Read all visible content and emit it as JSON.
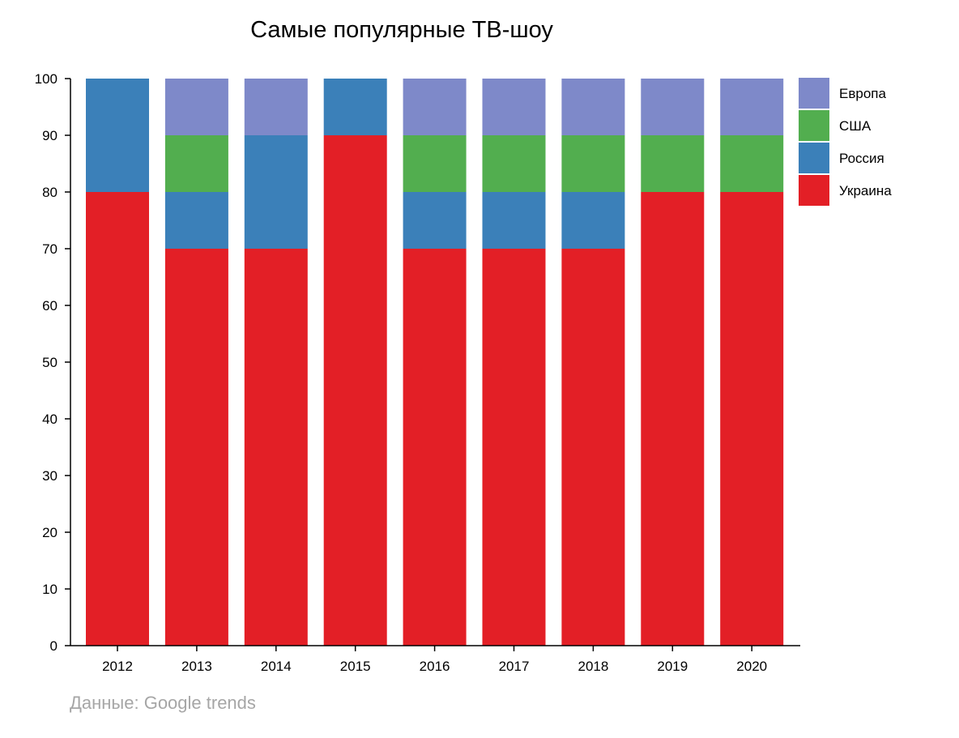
{
  "chart_data": {
    "type": "bar",
    "stacked": true,
    "title": "Самые популярные ТВ-шоу",
    "source": "Данные: Google trends",
    "categories": [
      "2012",
      "2013",
      "2014",
      "2015",
      "2016",
      "2017",
      "2018",
      "2019",
      "2020"
    ],
    "ylim": [
      0,
      100
    ],
    "yticks": [
      0,
      10,
      20,
      30,
      40,
      50,
      60,
      70,
      80,
      90,
      100
    ],
    "grid": false,
    "legend_position": "right",
    "series": [
      {
        "name": "Украина",
        "color": "#e31f26",
        "values": [
          80,
          70,
          70,
          90,
          70,
          70,
          70,
          80,
          80
        ]
      },
      {
        "name": "Россия",
        "color": "#3b80b9",
        "values": [
          20,
          10,
          20,
          10,
          10,
          10,
          10,
          0,
          0
        ]
      },
      {
        "name": "США",
        "color": "#52ae4f",
        "values": [
          0,
          10,
          0,
          0,
          10,
          10,
          10,
          10,
          10
        ]
      },
      {
        "name": "Европа",
        "color": "#7e89c9",
        "values": [
          0,
          10,
          10,
          0,
          10,
          10,
          10,
          10,
          10
        ]
      }
    ],
    "legend_order": [
      "Европа",
      "США",
      "Россия",
      "Украина"
    ]
  }
}
